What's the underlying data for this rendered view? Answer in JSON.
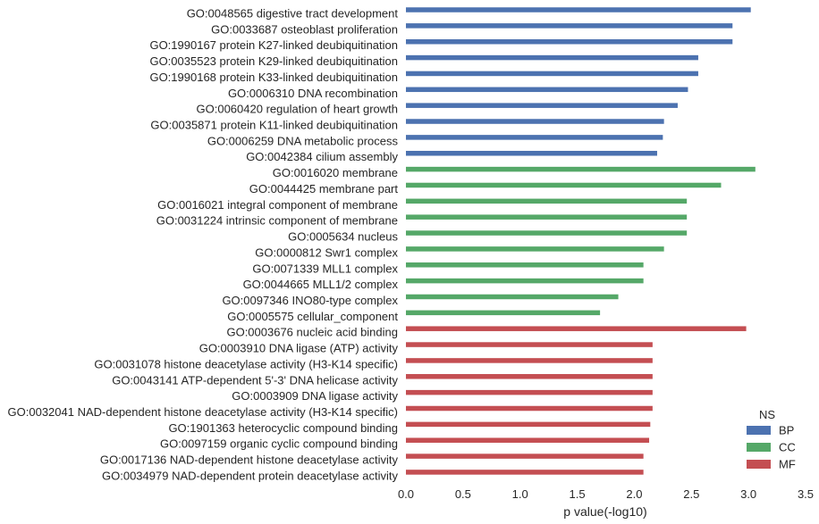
{
  "chart_data": {
    "type": "bar",
    "orientation": "horizontal",
    "xlabel": "p value(-log10)",
    "ylabel": "",
    "title": "",
    "xlim": [
      0,
      3.5
    ],
    "xticks": [
      "0.0",
      "0.5",
      "1.0",
      "1.5",
      "2.0",
      "2.5",
      "3.0",
      "3.5"
    ],
    "grid": false,
    "legend": {
      "title": "NS",
      "placement": "bottom-right",
      "entries": [
        {
          "name": "BP",
          "color": "#4c72b0"
        },
        {
          "name": "CC",
          "color": "#55a868"
        },
        {
          "name": "MF",
          "color": "#c44e52"
        }
      ]
    },
    "categories": [
      "GO:0048565 digestive tract development",
      "GO:0033687 osteoblast proliferation",
      "GO:1990167 protein K27-linked deubiquitination",
      "GO:0035523 protein K29-linked deubiquitination",
      "GO:1990168 protein K33-linked deubiquitination",
      "GO:0006310 DNA recombination",
      "GO:0060420 regulation of heart growth",
      "GO:0035871 protein K11-linked deubiquitination",
      "GO:0006259 DNA metabolic process",
      "GO:0042384 cilium assembly",
      "GO:0016020 membrane",
      "GO:0044425 membrane part",
      "GO:0016021 integral component of membrane",
      "GO:0031224 intrinsic component of membrane",
      "GO:0005634 nucleus",
      "GO:0000812 Swr1 complex",
      "GO:0071339 MLL1 complex",
      "GO:0044665 MLL1/2 complex",
      "GO:0097346 INO80-type complex",
      "GO:0005575 cellular_component",
      "GO:0003676 nucleic acid binding",
      "GO:0003910 DNA ligase (ATP) activity",
      "GO:0031078 histone deacetylase activity (H3-K14 specific)",
      "GO:0043141 ATP-dependent 5'-3' DNA helicase activity",
      "GO:0003909 DNA ligase activity",
      "GO:0032041 NAD-dependent histone deacetylase activity (H3-K14 specific)",
      "GO:1901363 heterocyclic compound binding",
      "GO:0097159 organic cyclic compound binding",
      "GO:0017136 NAD-dependent histone deacetylase activity",
      "GO:0034979 NAD-dependent protein deacetylase activity"
    ],
    "values": [
      3.02,
      2.86,
      2.86,
      2.56,
      2.56,
      2.47,
      2.38,
      2.26,
      2.25,
      2.2,
      3.06,
      2.76,
      2.46,
      2.46,
      2.46,
      2.26,
      2.08,
      2.08,
      1.86,
      1.7,
      2.98,
      2.16,
      2.16,
      2.16,
      2.16,
      2.16,
      2.14,
      2.13,
      2.08,
      2.08
    ],
    "groups": [
      "BP",
      "BP",
      "BP",
      "BP",
      "BP",
      "BP",
      "BP",
      "BP",
      "BP",
      "BP",
      "CC",
      "CC",
      "CC",
      "CC",
      "CC",
      "CC",
      "CC",
      "CC",
      "CC",
      "CC",
      "MF",
      "MF",
      "MF",
      "MF",
      "MF",
      "MF",
      "MF",
      "MF",
      "MF",
      "MF"
    ]
  }
}
